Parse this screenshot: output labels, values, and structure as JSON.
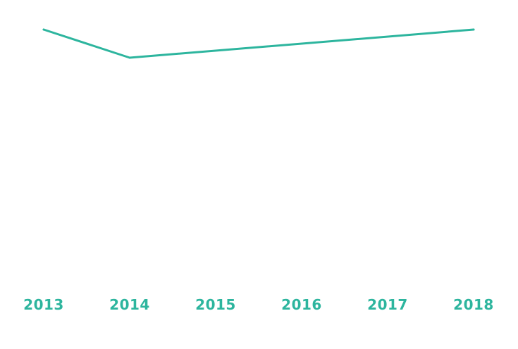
{
  "colors": {
    "line": "#2db59e",
    "tick_label": "#2db59e",
    "background": "#ffffff"
  },
  "chart_data": {
    "type": "line",
    "title": "",
    "xlabel": "",
    "ylabel": "",
    "categories": [
      "2013",
      "2014",
      "2015",
      "2016",
      "2017",
      "2018"
    ],
    "series": [
      {
        "values": [
          100,
          90,
          null,
          null,
          null,
          100
        ]
      }
    ],
    "ylim": [
      0,
      100
    ],
    "grid": false,
    "legend": "none"
  }
}
